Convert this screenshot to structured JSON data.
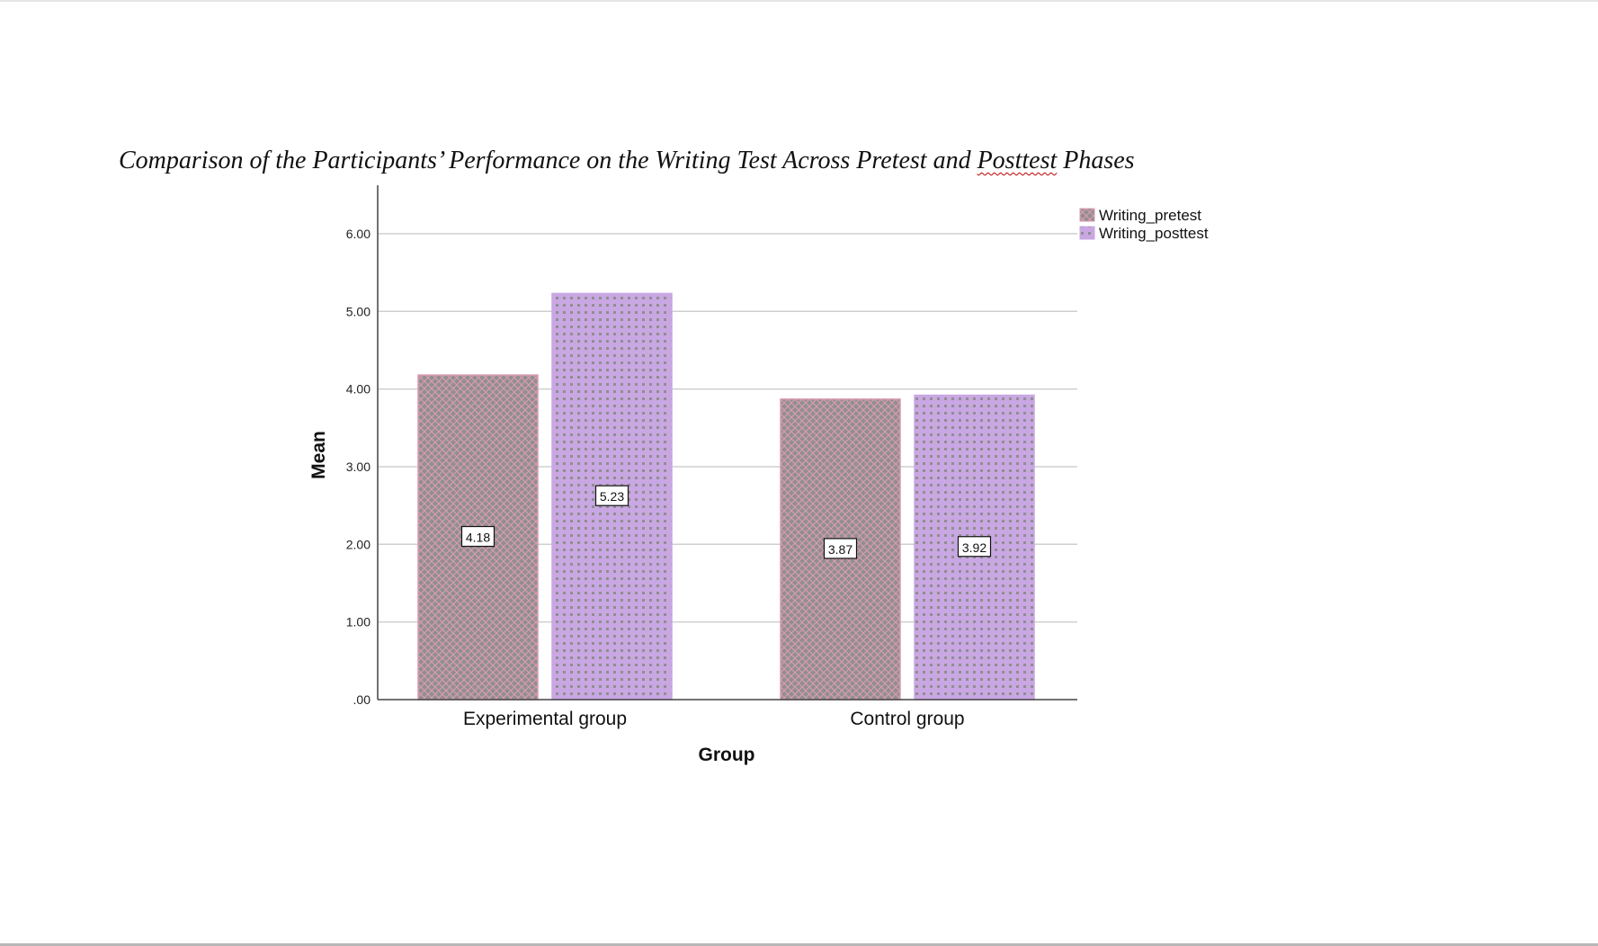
{
  "caption": {
    "text_before": "Comparison of the Participants’ Performance on the Writing Test Across Pretest and ",
    "text_flagged": "Posttest",
    "text_after": " Phases"
  },
  "chart_data": {
    "type": "bar",
    "categories": [
      "Experimental group",
      "Control group"
    ],
    "series": [
      {
        "name": "Writing_pretest",
        "values": [
          4.18,
          3.87
        ],
        "labels": [
          "4.18",
          "3.87"
        ],
        "color": "#8f8f8f",
        "pattern": "crosshatch",
        "pattern_color": "#d99ab0"
      },
      {
        "name": "Writing_posttest",
        "values": [
          5.23,
          3.92
        ],
        "labels": [
          "5.23",
          "3.92"
        ],
        "color": "#c9a7e3",
        "pattern": "dots",
        "pattern_color": "#8f8f8f"
      }
    ],
    "xlabel": "Group",
    "ylabel": "Mean",
    "ylim": [
      0,
      6.3
    ],
    "yticks": [
      0,
      1,
      2,
      3,
      4,
      5,
      6
    ],
    "ytick_labels": [
      ".00",
      "1.00",
      "2.00",
      "3.00",
      "4.00",
      "5.00",
      "6.00"
    ],
    "grid": true,
    "legend_position": "top-right"
  }
}
